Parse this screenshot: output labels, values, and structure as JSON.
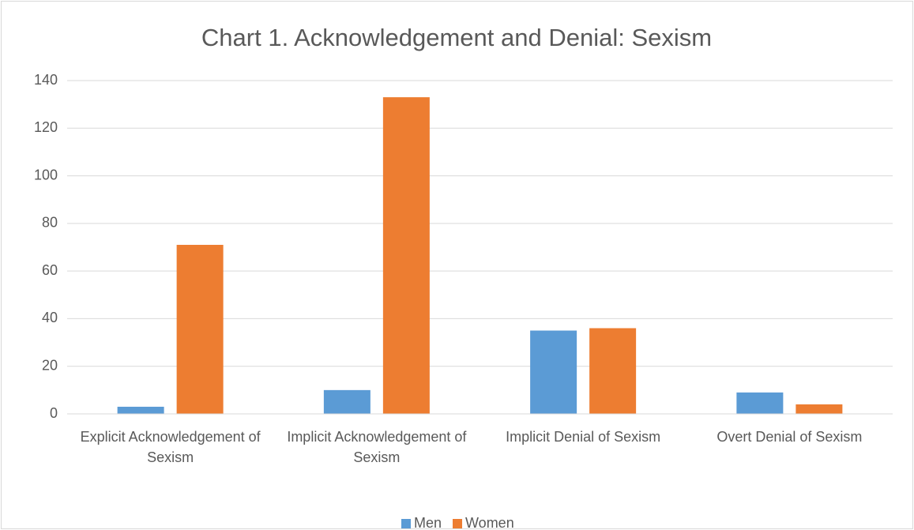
{
  "chart_data": {
    "type": "bar",
    "title": "Chart 1. Acknowledgement and Denial: Sexism",
    "categories": [
      "Explicit Acknowledgement of Sexism",
      "Implicit Acknowledgement of Sexism",
      "Implicit Denial of Sexism",
      "Overt Denial of Sexism"
    ],
    "series": [
      {
        "name": "Men",
        "color": "#5b9bd5",
        "values": [
          3,
          10,
          35,
          9
        ]
      },
      {
        "name": "Women",
        "color": "#ed7d31",
        "values": [
          71,
          133,
          36,
          4
        ]
      }
    ],
    "ylim": [
      0,
      140
    ],
    "yticks": [
      0,
      20,
      40,
      60,
      80,
      100,
      120,
      140
    ],
    "grid": true,
    "legend": "bottom"
  }
}
